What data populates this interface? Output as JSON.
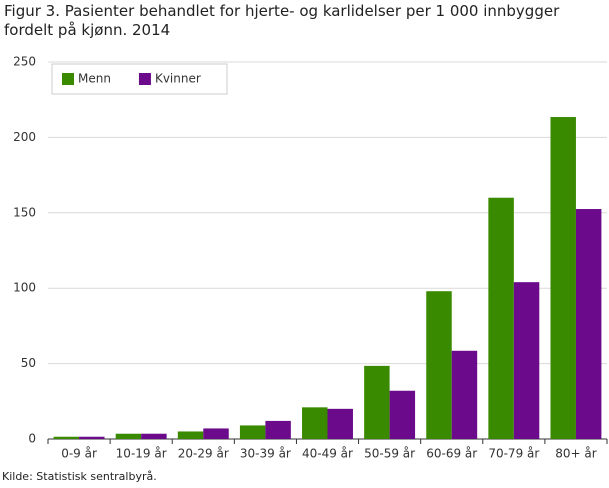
{
  "chart_data": {
    "type": "bar",
    "title": "Figur 3. Pasienter behandlet for hjerte- og karlidelser per 1 000 innbygger fordelt på kjønn. 2014",
    "source": "Kilde: Statistisk sentralbyrå.",
    "categories": [
      "0-9 år",
      "10-19 år",
      "20-29 år",
      "30-39 år",
      "40-49 år",
      "50-59 år",
      "60-69 år",
      "70-79 år",
      "80+ år"
    ],
    "series": [
      {
        "name": "Menn",
        "color": "#3a8a00",
        "values": [
          1.5,
          3.5,
          5,
          9,
          21,
          48.5,
          98,
          160,
          213.5
        ]
      },
      {
        "name": "Kvinner",
        "color": "#6b0a8a",
        "values": [
          1.5,
          3.5,
          7,
          12,
          20,
          32,
          58.5,
          104,
          152.5
        ]
      }
    ],
    "ylim": [
      0,
      250
    ],
    "yticks": [
      0,
      50,
      100,
      150,
      200,
      250
    ],
    "grid": true,
    "legend": "top-left"
  }
}
